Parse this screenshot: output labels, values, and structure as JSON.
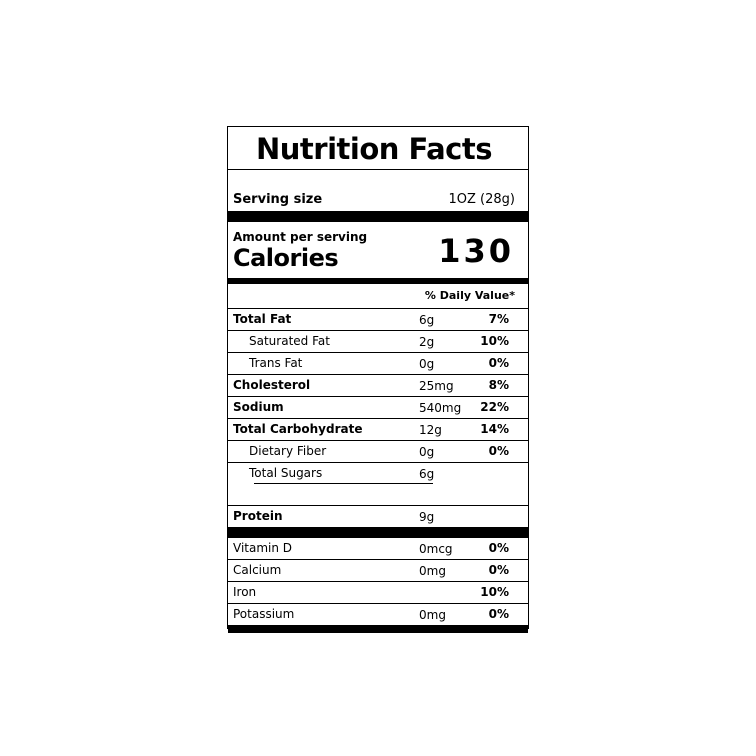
{
  "title": "Nutrition Facts",
  "serving": {
    "label": "Serving size",
    "value": "1OZ (28g)"
  },
  "amount_per_serving": "Amount per serving",
  "calories": {
    "label": "Calories",
    "value": "130"
  },
  "daily_value_header": "% Daily Value*",
  "nutrients": [
    {
      "name": "Total Fat",
      "amount": "6g",
      "dv": "7%"
    },
    {
      "name": "Saturated Fat",
      "amount": "2g",
      "dv": "10%"
    },
    {
      "name": "Trans Fat",
      "amount": "0g",
      "dv": "0%"
    },
    {
      "name": "Cholesterol",
      "amount": "25mg",
      "dv": "8%"
    },
    {
      "name": "Sodium",
      "amount": "540mg",
      "dv": "22%"
    },
    {
      "name": "Total Carbohydrate",
      "amount": "12g",
      "dv": "14%"
    },
    {
      "name": "Dietary Fiber",
      "amount": "0g",
      "dv": "0%"
    },
    {
      "name": "Total Sugars",
      "amount": "6g",
      "dv": ""
    },
    {
      "name": "Protein",
      "amount": "9g",
      "dv": ""
    }
  ],
  "vitamins": [
    {
      "name": "Vitamin D",
      "amount": "0mcg",
      "dv": "0%"
    },
    {
      "name": "Calcium",
      "amount": "0mg",
      "dv": "0%"
    },
    {
      "name": "Iron",
      "amount": "",
      "dv": "10%"
    },
    {
      "name": "Potassium",
      "amount": "0mg",
      "dv": "0%"
    }
  ]
}
